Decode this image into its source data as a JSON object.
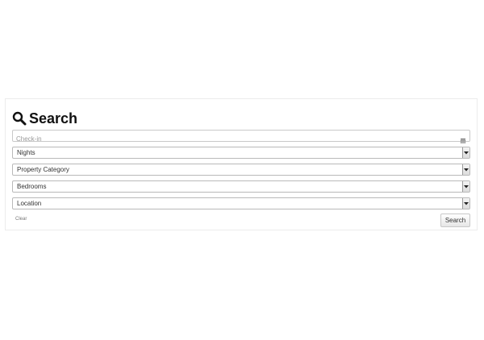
{
  "form": {
    "title": "Search",
    "title_icon": "search-icon",
    "checkin": {
      "placeholder": "Check-in",
      "value": "",
      "icon": "calendar-icon"
    },
    "selects": [
      {
        "label": "Nights"
      },
      {
        "label": "Property Category"
      },
      {
        "label": "Bedrooms"
      },
      {
        "label": "Location"
      }
    ],
    "clear_label": "Clear",
    "search_label": "Search"
  },
  "colors": {
    "border": "#c9c9c9",
    "panel_border": "#ececec",
    "text": "#333333",
    "placeholder": "#9a9a9a"
  }
}
